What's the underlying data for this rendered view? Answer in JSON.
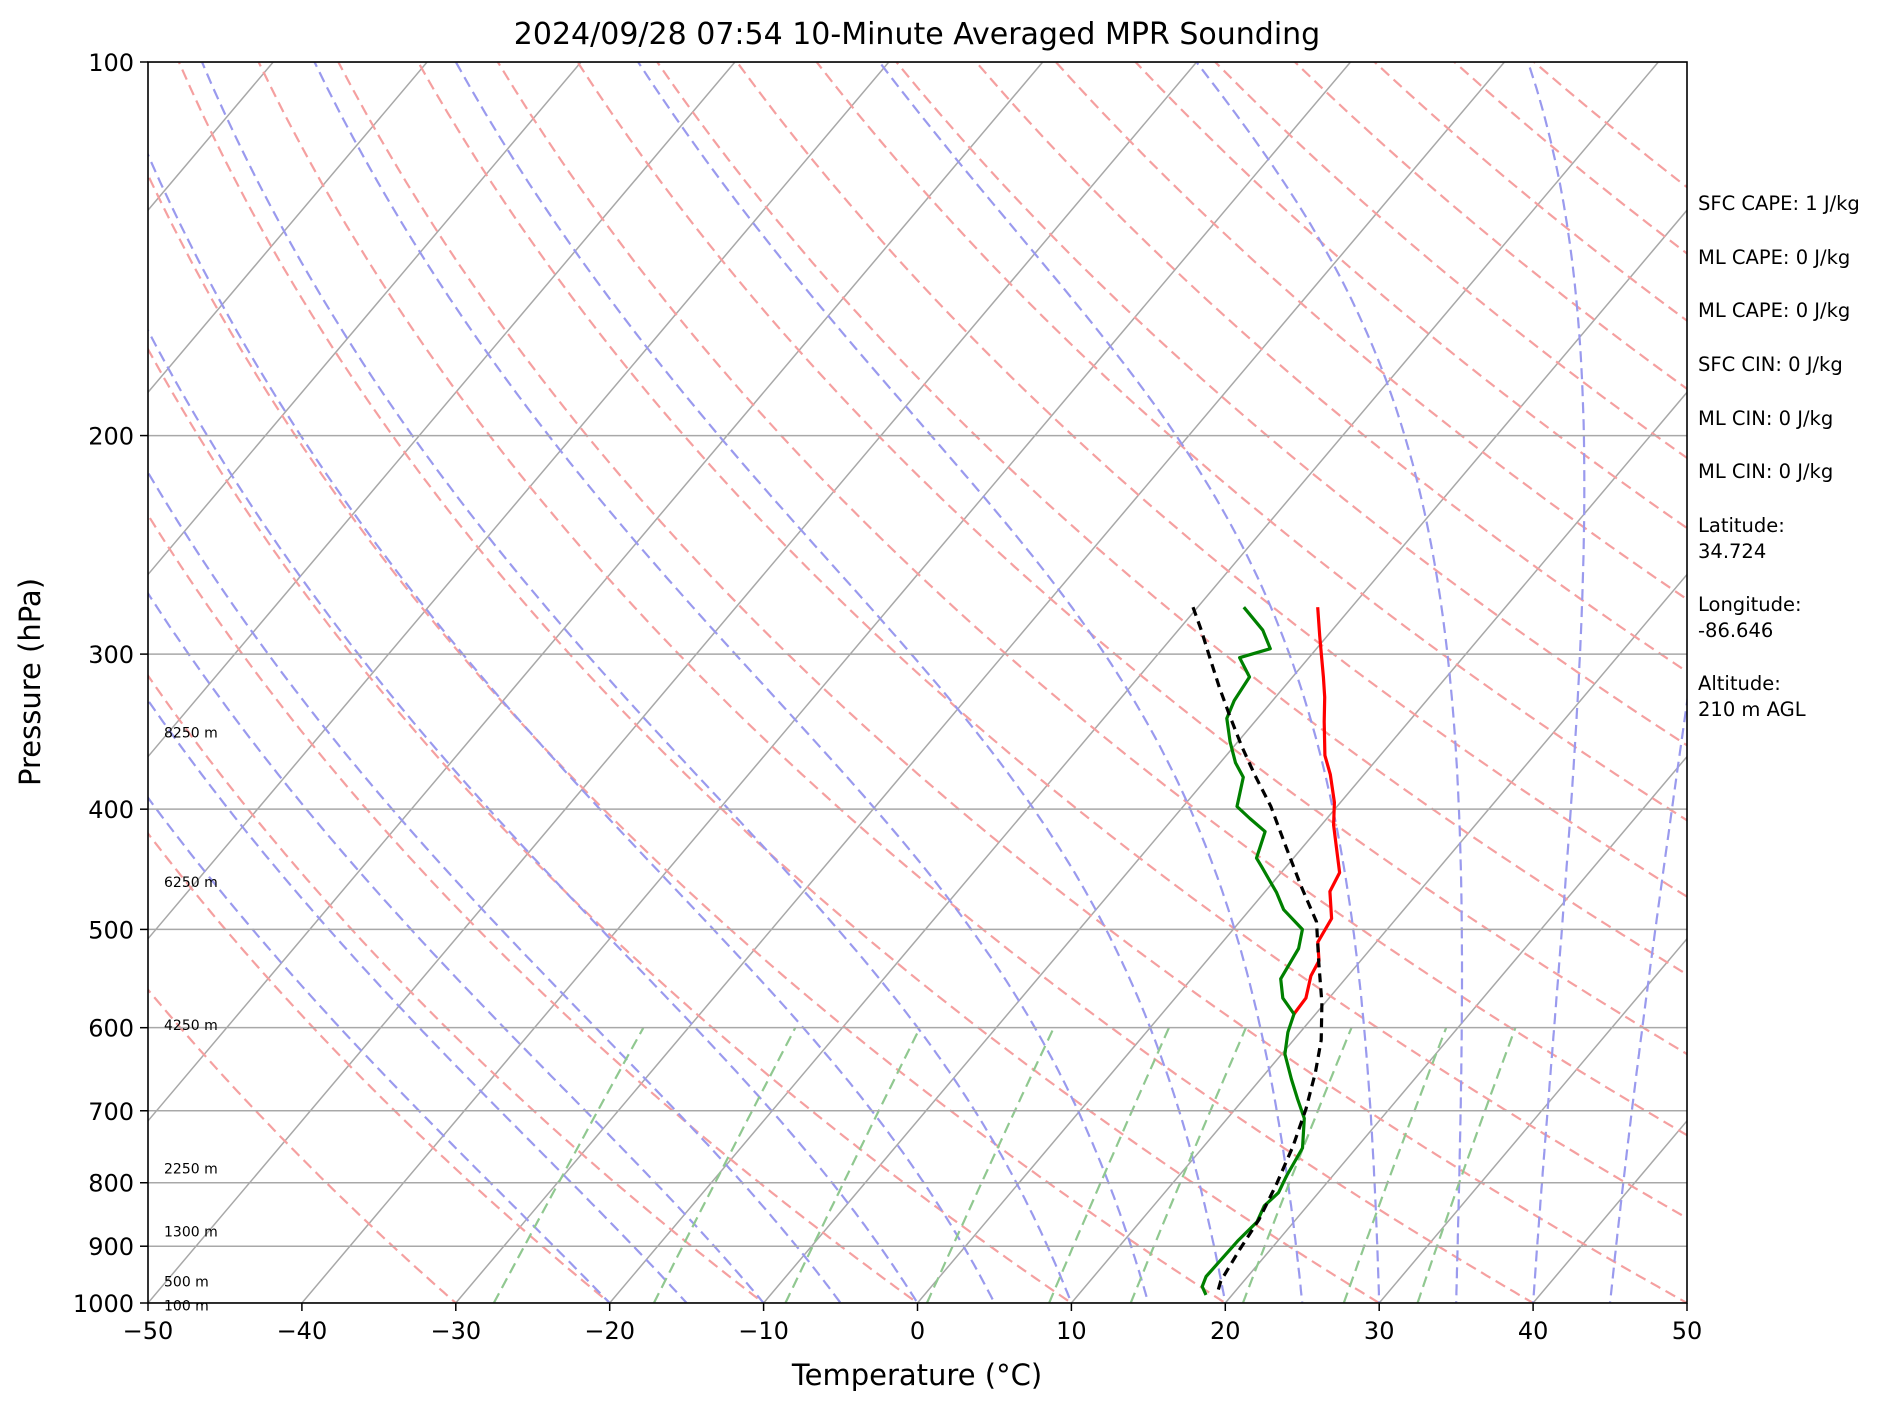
{
  "chart_data": {
    "type": "line",
    "title": "2024/09/28 07:54 10-Minute Averaged MPR Sounding",
    "xlabel": "Temperature (°C)",
    "ylabel": "Pressure (hPa)",
    "xlim": [
      -50,
      50
    ],
    "ylim": [
      1000,
      100
    ],
    "y_scale": "log",
    "grid": true,
    "x_ticks": [
      -50,
      -40,
      -30,
      -20,
      -10,
      0,
      10,
      20,
      30,
      40,
      50
    ],
    "x_tick_labels": [
      "−50",
      "−40",
      "−30",
      "−20",
      "−10",
      "0",
      "10",
      "20",
      "30",
      "40",
      "50"
    ],
    "y_ticks": [
      1000,
      900,
      800,
      700,
      600,
      500,
      400,
      300,
      200,
      100
    ],
    "y_tick_labels": [
      "1000",
      "900",
      "800",
      "700",
      "600",
      "500",
      "400",
      "300",
      "200",
      "100"
    ],
    "series": [
      {
        "color": "#ff0000",
        "points": [
          [
            -12.2,
            275
          ],
          [
            -10.5,
            290
          ],
          [
            -8,
            313
          ],
          [
            -6.8,
            325
          ],
          [
            -5.5,
            340
          ],
          [
            -3.6,
            362
          ],
          [
            -2.2,
            375
          ],
          [
            -0.4,
            395
          ],
          [
            0.8,
            412
          ],
          [
            2.8,
            437
          ],
          [
            3.8,
            450
          ],
          [
            4.2,
            466
          ],
          [
            5.8,
            490
          ],
          [
            6.2,
            512
          ],
          [
            7.3,
            530
          ],
          [
            7.6,
            545
          ],
          [
            8.5,
            568
          ],
          [
            8.6,
            585
          ]
        ]
      },
      {
        "color": "#008000",
        "points": [
          [
            -17,
            275
          ],
          [
            -14.5,
            287
          ],
          [
            -13,
            297
          ],
          [
            -14.5,
            302
          ],
          [
            -12.8,
            313
          ],
          [
            -12.5,
            327
          ],
          [
            -12,
            338
          ],
          [
            -10.5,
            353
          ],
          [
            -9,
            367
          ],
          [
            -7.7,
            377
          ],
          [
            -6.5,
            398
          ],
          [
            -5,
            407
          ],
          [
            -3.3,
            417
          ],
          [
            -2.4,
            438
          ],
          [
            -1.6,
            445
          ],
          [
            0.8,
            467
          ],
          [
            2.2,
            482
          ],
          [
            4.5,
            500
          ],
          [
            5.3,
            518
          ],
          [
            5.8,
            548
          ],
          [
            7,
            568
          ],
          [
            8.6,
            585
          ],
          [
            9.2,
            605
          ],
          [
            10.2,
            630
          ],
          [
            12,
            660
          ],
          [
            13.5,
            685
          ],
          [
            15,
            710
          ],
          [
            16.5,
            750
          ],
          [
            17,
            790
          ],
          [
            17.4,
            815
          ],
          [
            17.2,
            835
          ],
          [
            17.6,
            860
          ],
          [
            17.4,
            890
          ],
          [
            17.3,
            952
          ],
          [
            17.6,
            970
          ],
          [
            18.3,
            985
          ]
        ]
      },
      {
        "color": "#000000",
        "dashed": true,
        "points": [
          [
            -20.3,
            275
          ],
          [
            -18.5,
            287
          ],
          [
            -16.3,
            303
          ],
          [
            -14.2,
            319
          ],
          [
            -12,
            336
          ],
          [
            -9.5,
            356
          ],
          [
            -7,
            376
          ],
          [
            -4.3,
            398
          ],
          [
            -1.2,
            428
          ],
          [
            1.9,
            460
          ],
          [
            5,
            493
          ],
          [
            7.4,
            532
          ],
          [
            9.8,
            573
          ],
          [
            11.8,
            614
          ],
          [
            13.2,
            652
          ],
          [
            14.6,
            698
          ],
          [
            15.8,
            748
          ],
          [
            16.8,
            802
          ],
          [
            17.6,
            856
          ],
          [
            18,
            906
          ],
          [
            18.5,
            960
          ],
          [
            19,
            985
          ]
        ]
      }
    ],
    "height_labels": [
      {
        "text": "8250 m",
        "pressure": 347
      },
      {
        "text": "6250 m",
        "pressure": 458
      },
      {
        "text": "4250 m",
        "pressure": 597
      },
      {
        "text": "2250 m",
        "pressure": 779
      },
      {
        "text": "1300 m",
        "pressure": 876
      },
      {
        "text": "500 m",
        "pressure": 961
      },
      {
        "text": "100 m",
        "pressure": 1005
      }
    ],
    "background_line_colors": {
      "isotherm": "#a8a8a8",
      "dry_adiabat": "#f5a0a0",
      "moist_adiabat": "#9a9aee",
      "mixing_ratio": "#90c890"
    },
    "line_colors": {
      "temperature": "#ff0000",
      "dewpoint": "#008000",
      "parcel": "#000000"
    }
  },
  "info_panel": {
    "sfc_cape": "SFC CAPE: 1 J/kg",
    "ml_cape_1": "ML CAPE: 0 J/kg",
    "ml_cape_2": "ML CAPE: 0 J/kg",
    "sfc_cin": "SFC CIN: 0 J/kg",
    "ml_cin_1": "ML CIN: 0 J/kg",
    "ml_cin_2": "ML CIN: 0 J/kg",
    "latitude_label": "Latitude:",
    "latitude_value": "34.724",
    "longitude_label": "Longitude:",
    "longitude_value": "-86.646",
    "altitude_label": "Altitude:",
    "altitude_value": "210 m AGL"
  }
}
